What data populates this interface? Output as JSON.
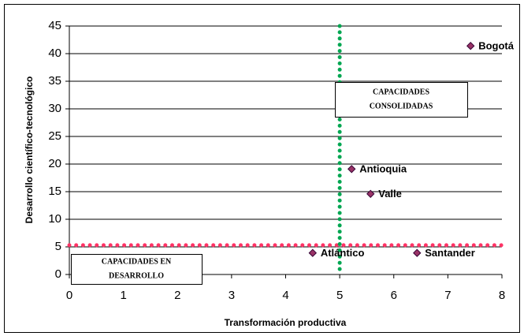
{
  "chart_data": {
    "type": "scatter",
    "x_label": "Transformación productiva",
    "y_label": "Desarrollo científico-tecnológico",
    "xlim": [
      0,
      8
    ],
    "xticks": [
      0,
      1,
      2,
      3,
      4,
      5,
      6,
      7,
      8
    ],
    "ylim": [
      0,
      45
    ],
    "yticks": [
      0,
      5,
      10,
      15,
      20,
      25,
      30,
      35,
      40,
      45
    ],
    "grid": true,
    "series": [
      {
        "color": "#993366",
        "labels": [
          "Bogotá",
          "Antioquia",
          "Valle",
          "Atlántico",
          "Santander"
        ],
        "x": [
          7.42,
          5.22,
          5.57,
          4.5,
          6.43
        ],
        "y": [
          41.4,
          19.1,
          14.6,
          3.9,
          3.9
        ]
      }
    ],
    "reference_lines": {
      "x": 5,
      "x_color": "#00a651",
      "y": 5.3,
      "y_color": "#ff3366"
    },
    "annotations": [
      {
        "lines": [
          "CAPACIDADES",
          "CONSOLIDADAS"
        ]
      },
      {
        "lines": [
          "CAPACIDADES EN",
          "DESARROLLO"
        ]
      }
    ]
  }
}
